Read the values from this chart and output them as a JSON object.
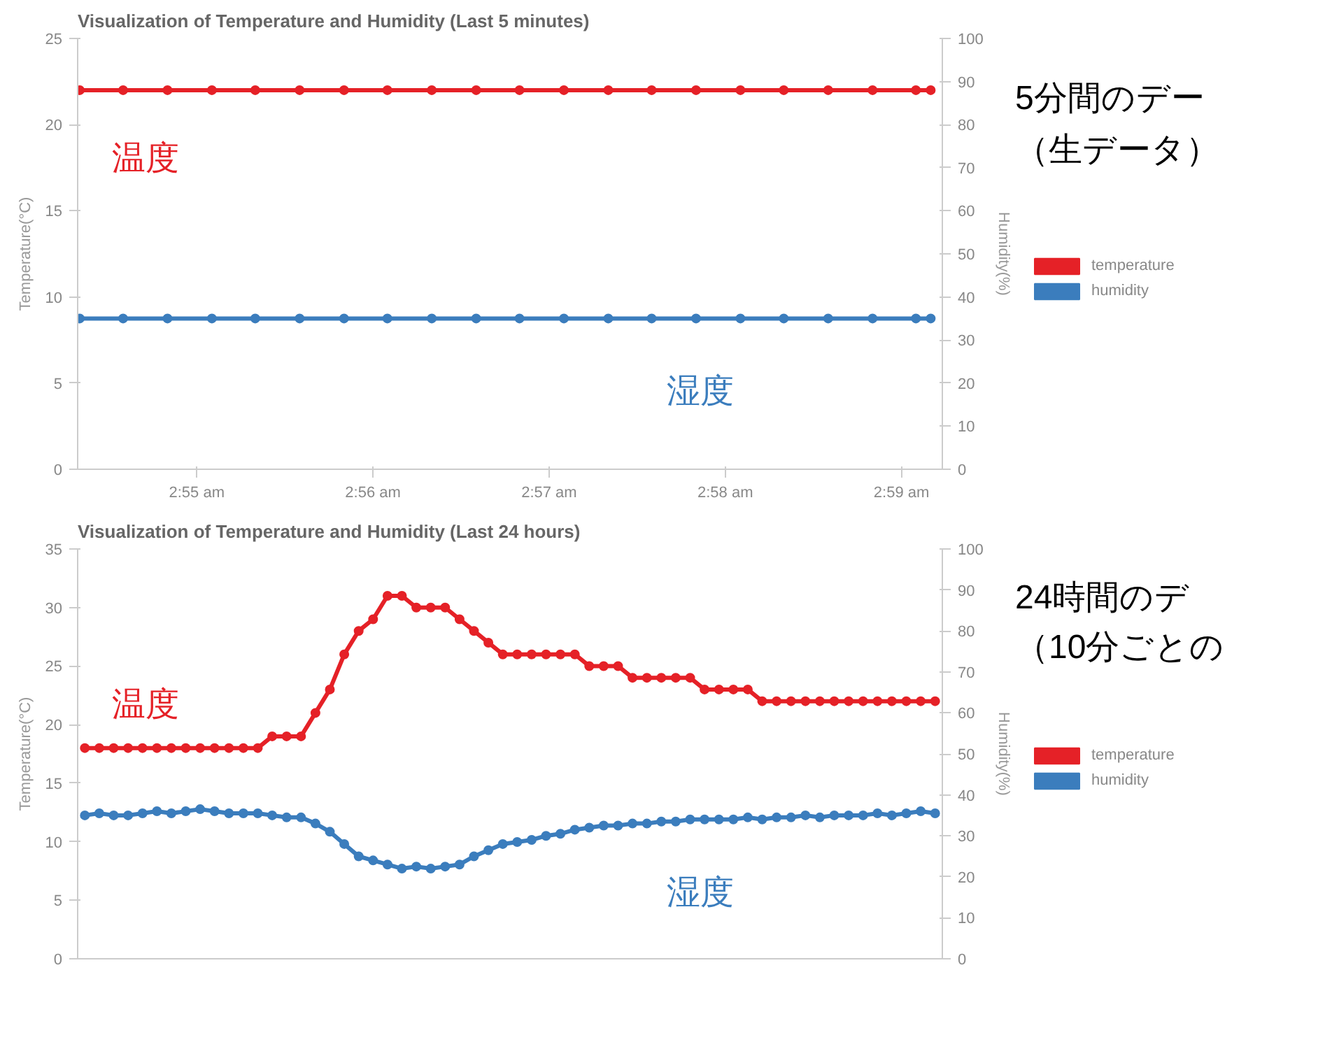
{
  "chart_data": [
    {
      "type": "line",
      "title": "Visualization of Temperature and Humidity (Last 5 minutes)",
      "ylabel": "Temperature(°C)",
      "y2label": "Humidity(%)",
      "x": [
        2.9056,
        2.9097,
        2.9139,
        2.9181,
        2.9222,
        2.9264,
        2.9306,
        2.9347,
        2.9389,
        2.9431,
        2.9472,
        2.9514,
        2.9556,
        2.9597,
        2.9639,
        2.9681,
        2.9722,
        2.9764,
        2.9806,
        2.9847,
        2.9861
      ],
      "xlim": [
        2.9054,
        2.9872
      ],
      "xticks": [
        {
          "value": 2.916667,
          "label": "2:55 am"
        },
        {
          "value": 2.933333,
          "label": "2:56 am"
        },
        {
          "value": 2.95,
          "label": "2:57 am"
        },
        {
          "value": 2.966667,
          "label": "2:58 am"
        },
        {
          "value": 2.983333,
          "label": "2:59 am"
        }
      ],
      "ylim": [
        0,
        25
      ],
      "yticks": [
        0,
        5,
        10,
        15,
        20,
        25
      ],
      "y2lim": [
        0,
        100
      ],
      "y2ticks": [
        0,
        10,
        20,
        30,
        40,
        50,
        60,
        70,
        80,
        90,
        100
      ],
      "marker": "circle",
      "legend": "right",
      "series": [
        {
          "name": "temperature",
          "color": "#e52127",
          "values": [
            22,
            22,
            22,
            22,
            22,
            22,
            22,
            22,
            22,
            22,
            22,
            22,
            22,
            22,
            22,
            22,
            22,
            22,
            22,
            22,
            22
          ]
        },
        {
          "name": "humidity",
          "color": "#3b7dbd",
          "axis": "y2",
          "values": [
            35,
            35,
            35,
            35,
            35,
            35,
            35,
            35,
            35,
            35,
            35,
            35,
            35,
            35,
            35,
            35,
            35,
            35,
            35,
            35,
            35
          ]
        }
      ],
      "annotations": [
        "温度",
        "湿度",
        "5分間のデー",
        "（生データ）"
      ]
    },
    {
      "type": "line",
      "title": "Visualization of Temperature and Humidity (Last 24 hours)",
      "ylabel": "Temperature(°C)",
      "y2label": "Humidity(%)",
      "categories": [
        null,
        null,
        null,
        null,
        null,
        null,
        null,
        null,
        null,
        null,
        null,
        null,
        null,
        null,
        null,
        null,
        null,
        null,
        null,
        null,
        null,
        null,
        null,
        null,
        null,
        null,
        null,
        null,
        null,
        null,
        null,
        null,
        null,
        null,
        null,
        null,
        null,
        null,
        null,
        null,
        null,
        null,
        null,
        null,
        null,
        null,
        null,
        null,
        null,
        null,
        null,
        null,
        null,
        null,
        null,
        null,
        null,
        null,
        null,
        null
      ],
      "ylim": [
        0,
        35
      ],
      "yticks": [
        0,
        5,
        10,
        15,
        20,
        25,
        30,
        35
      ],
      "y2lim": [
        0,
        100
      ],
      "y2ticks": [
        0,
        10,
        20,
        30,
        40,
        50,
        60,
        70,
        80,
        90,
        100
      ],
      "marker": "circle",
      "legend": "right",
      "series": [
        {
          "name": "temperature",
          "color": "#e52127",
          "values": [
            18,
            18,
            18,
            18,
            18,
            18,
            18,
            18,
            18,
            18,
            18,
            18,
            18,
            19,
            19,
            19,
            21,
            23,
            26,
            28,
            29,
            31,
            31,
            30,
            30,
            30,
            29,
            28,
            27,
            26,
            26,
            26,
            26,
            26,
            26,
            25,
            25,
            25,
            24,
            24,
            24,
            24,
            24,
            23,
            23,
            23,
            23,
            22,
            22,
            22,
            22,
            22,
            22,
            22,
            22,
            22,
            22,
            22,
            22,
            22
          ]
        },
        {
          "name": "humidity",
          "color": "#3b7dbd",
          "axis": "y2",
          "values": [
            35,
            35.5,
            35,
            35,
            35.5,
            36,
            35.5,
            36,
            36.5,
            36,
            35.5,
            35.5,
            35.5,
            35,
            34.5,
            34.5,
            33,
            31,
            28,
            25,
            24,
            23,
            22,
            22.5,
            22,
            22.5,
            23,
            25,
            26.5,
            28,
            28.5,
            29,
            30,
            30.5,
            31.5,
            32,
            32.5,
            32.5,
            33,
            33,
            33.5,
            33.5,
            34,
            34,
            34,
            34,
            34.5,
            34,
            34.5,
            34.5,
            35,
            34.5,
            35,
            35,
            35,
            35.5,
            35,
            35.5,
            36,
            35.5
          ]
        }
      ],
      "annotations": [
        "温度",
        "湿度",
        "24時間のデ",
        "（10分ごとの"
      ]
    }
  ]
}
